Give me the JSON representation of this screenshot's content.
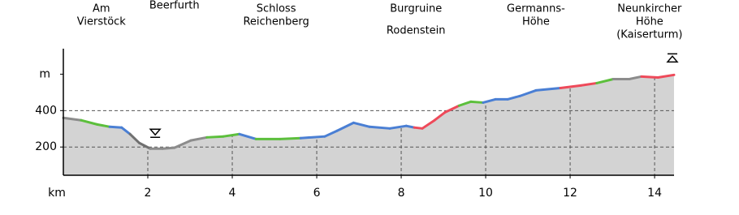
{
  "chart_data": {
    "type": "line",
    "xlabel": "km",
    "x": [
      0,
      0.42,
      0.8,
      1.1,
      1.38,
      1.58,
      1.8,
      2.06,
      2.35,
      2.63,
      3.02,
      3.4,
      3.79,
      4.17,
      4.56,
      5.13,
      5.62,
      6.19,
      6.48,
      6.87,
      7.25,
      7.73,
      8.12,
      8.31,
      8.5,
      8.79,
      9.04,
      9.37,
      9.65,
      9.94,
      10.23,
      10.52,
      10.81,
      11.19,
      11.77,
      12.25,
      12.63,
      13.02,
      13.4,
      13.69,
      14.08,
      14.46
    ],
    "values": [
      360,
      347,
      324,
      311,
      307,
      271,
      222,
      191,
      191,
      196,
      236,
      253,
      258,
      271,
      244,
      244,
      249,
      258,
      289,
      333,
      311,
      302,
      316,
      307,
      302,
      347,
      391,
      427,
      449,
      444,
      462,
      462,
      480,
      511,
      524,
      538,
      551,
      573,
      573,
      587,
      582,
      596
    ],
    "segment_colors": [
      "#8c8c8c",
      "#5cbf3c",
      "#5cbf3c",
      "#4a7fd4",
      "#4a7fd4",
      "#707070",
      "#707070",
      "#8c8c8c",
      "#8c8c8c",
      "#8c8c8c",
      "#8c8c8c",
      "#5cbf3c",
      "#5cbf3c",
      "#4a7fd4",
      "#5cbf3c",
      "#5cbf3c",
      "#4a7fd4",
      "#4a7fd4",
      "#4a7fd4",
      "#4a7fd4",
      "#4a7fd4",
      "#4a7fd4",
      "#4a7fd4",
      "#ee4a5a",
      "#ee4a5a",
      "#ee4a5a",
      "#ee4a5a",
      "#5cbf3c",
      "#5cbf3c",
      "#4a7fd4",
      "#4a7fd4",
      "#4a7fd4",
      "#4a7fd4",
      "#4a7fd4",
      "#ee4a5a",
      "#ee4a5a",
      "#5cbf3c",
      "#8c8c8c",
      "#8c8c8c",
      "#ee4a5a",
      "#ee4a5a"
    ],
    "fill_color": "#d3d3d3",
    "xlim": [
      0,
      14.46
    ],
    "xticks": [
      2,
      4,
      6,
      8,
      10,
      12,
      14
    ],
    "ylim": [
      45,
      740
    ],
    "yticks": [
      200,
      400,
      {
        "value": 600,
        "label": "m"
      }
    ],
    "grid": true,
    "annotations": [
      {
        "x": 0.9,
        "lines": [
          "Am",
          "Vierstöck"
        ]
      },
      {
        "x": 2.63,
        "lines": [
          "Beerfurth"
        ]
      },
      {
        "x": 5.04,
        "lines": [
          "Schloss",
          "Reichenberg"
        ]
      },
      {
        "x": 8.35,
        "lines": [
          "Burgruine",
          "Rodenstein"
        ]
      },
      {
        "x": 11.19,
        "lines": [
          "Germanns-",
          "Höhe"
        ]
      },
      {
        "x": 13.88,
        "lines": [
          "Neunkircher",
          "Höhe",
          "(Kaiserturm)"
        ]
      }
    ]
  }
}
